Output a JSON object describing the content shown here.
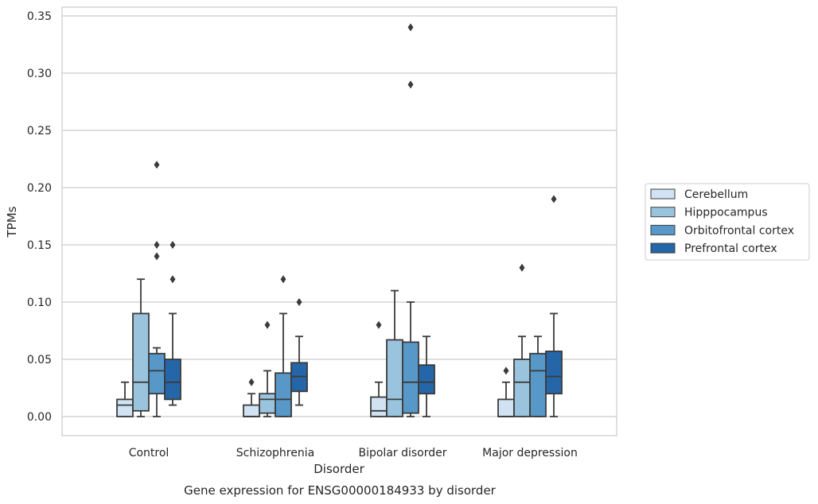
{
  "chart_data": {
    "type": "box",
    "title": "",
    "caption": "Gene expression for ENSG00000184933 by disorder",
    "xlabel": "Disorder",
    "ylabel": "TPMs",
    "ylim": [
      -0.017,
      0.358
    ],
    "yticks": [
      "0.00",
      "0.05",
      "0.10",
      "0.15",
      "0.20",
      "0.25",
      "0.30",
      "0.35"
    ],
    "ytick_values": [
      0,
      0.05,
      0.1,
      0.15,
      0.2,
      0.25,
      0.3,
      0.35
    ],
    "grid": "horizontal",
    "legend_position": "right",
    "categories": [
      "Control",
      "Schizophrenia",
      "Bipolar disorder",
      "Major depression"
    ],
    "series": [
      {
        "name": "Cerebellum",
        "color": "#d1e2f2",
        "boxes": [
          {
            "q1": 0.0,
            "median": 0.01,
            "q3": 0.015,
            "whisker_low": 0.0,
            "whisker_high": 0.03,
            "outliers": []
          },
          {
            "q1": 0.0,
            "median": 0.0,
            "q3": 0.01,
            "whisker_low": 0.0,
            "whisker_high": 0.02,
            "outliers": [
              0.03
            ]
          },
          {
            "q1": 0.0,
            "median": 0.005,
            "q3": 0.017,
            "whisker_low": 0.0,
            "whisker_high": 0.03,
            "outliers": [
              0.08
            ]
          },
          {
            "q1": 0.0,
            "median": 0.0,
            "q3": 0.015,
            "whisker_low": 0.0,
            "whisker_high": 0.03,
            "outliers": [
              0.04
            ]
          }
        ]
      },
      {
        "name": "Hipppocampus",
        "color": "#9ac4de",
        "boxes": [
          {
            "q1": 0.005,
            "median": 0.03,
            "q3": 0.09,
            "whisker_low": 0.0,
            "whisker_high": 0.12,
            "outliers": []
          },
          {
            "q1": 0.003,
            "median": 0.015,
            "q3": 0.02,
            "whisker_low": 0.0,
            "whisker_high": 0.04,
            "outliers": [
              0.08
            ]
          },
          {
            "q1": 0.0,
            "median": 0.015,
            "q3": 0.067,
            "whisker_low": 0.0,
            "whisker_high": 0.11,
            "outliers": []
          },
          {
            "q1": 0.0,
            "median": 0.03,
            "q3": 0.05,
            "whisker_low": 0.0,
            "whisker_high": 0.07,
            "outliers": [
              0.13
            ]
          }
        ]
      },
      {
        "name": "Orbitofrontal cortex",
        "color": "#5798c8",
        "boxes": [
          {
            "q1": 0.02,
            "median": 0.04,
            "q3": 0.055,
            "whisker_low": 0.0,
            "whisker_high": 0.06,
            "outliers": [
              0.14,
              0.15,
              0.22
            ]
          },
          {
            "q1": 0.0,
            "median": 0.015,
            "q3": 0.038,
            "whisker_low": 0.0,
            "whisker_high": 0.09,
            "outliers": [
              0.12
            ]
          },
          {
            "q1": 0.003,
            "median": 0.03,
            "q3": 0.065,
            "whisker_low": 0.0,
            "whisker_high": 0.1,
            "outliers": [
              0.29,
              0.34
            ]
          },
          {
            "q1": 0.0,
            "median": 0.04,
            "q3": 0.055,
            "whisker_low": 0.0,
            "whisker_high": 0.07,
            "outliers": []
          }
        ]
      },
      {
        "name": "Prefrontal cortex",
        "color": "#2466a8",
        "boxes": [
          {
            "q1": 0.015,
            "median": 0.03,
            "q3": 0.05,
            "whisker_low": 0.01,
            "whisker_high": 0.09,
            "outliers": [
              0.12,
              0.15
            ]
          },
          {
            "q1": 0.022,
            "median": 0.035,
            "q3": 0.047,
            "whisker_low": 0.01,
            "whisker_high": 0.07,
            "outliers": [
              0.1
            ]
          },
          {
            "q1": 0.02,
            "median": 0.03,
            "q3": 0.045,
            "whisker_low": 0.0,
            "whisker_high": 0.07,
            "outliers": []
          },
          {
            "q1": 0.02,
            "median": 0.035,
            "q3": 0.057,
            "whisker_low": 0.0,
            "whisker_high": 0.09,
            "outliers": [
              0.19
            ]
          }
        ]
      }
    ]
  }
}
